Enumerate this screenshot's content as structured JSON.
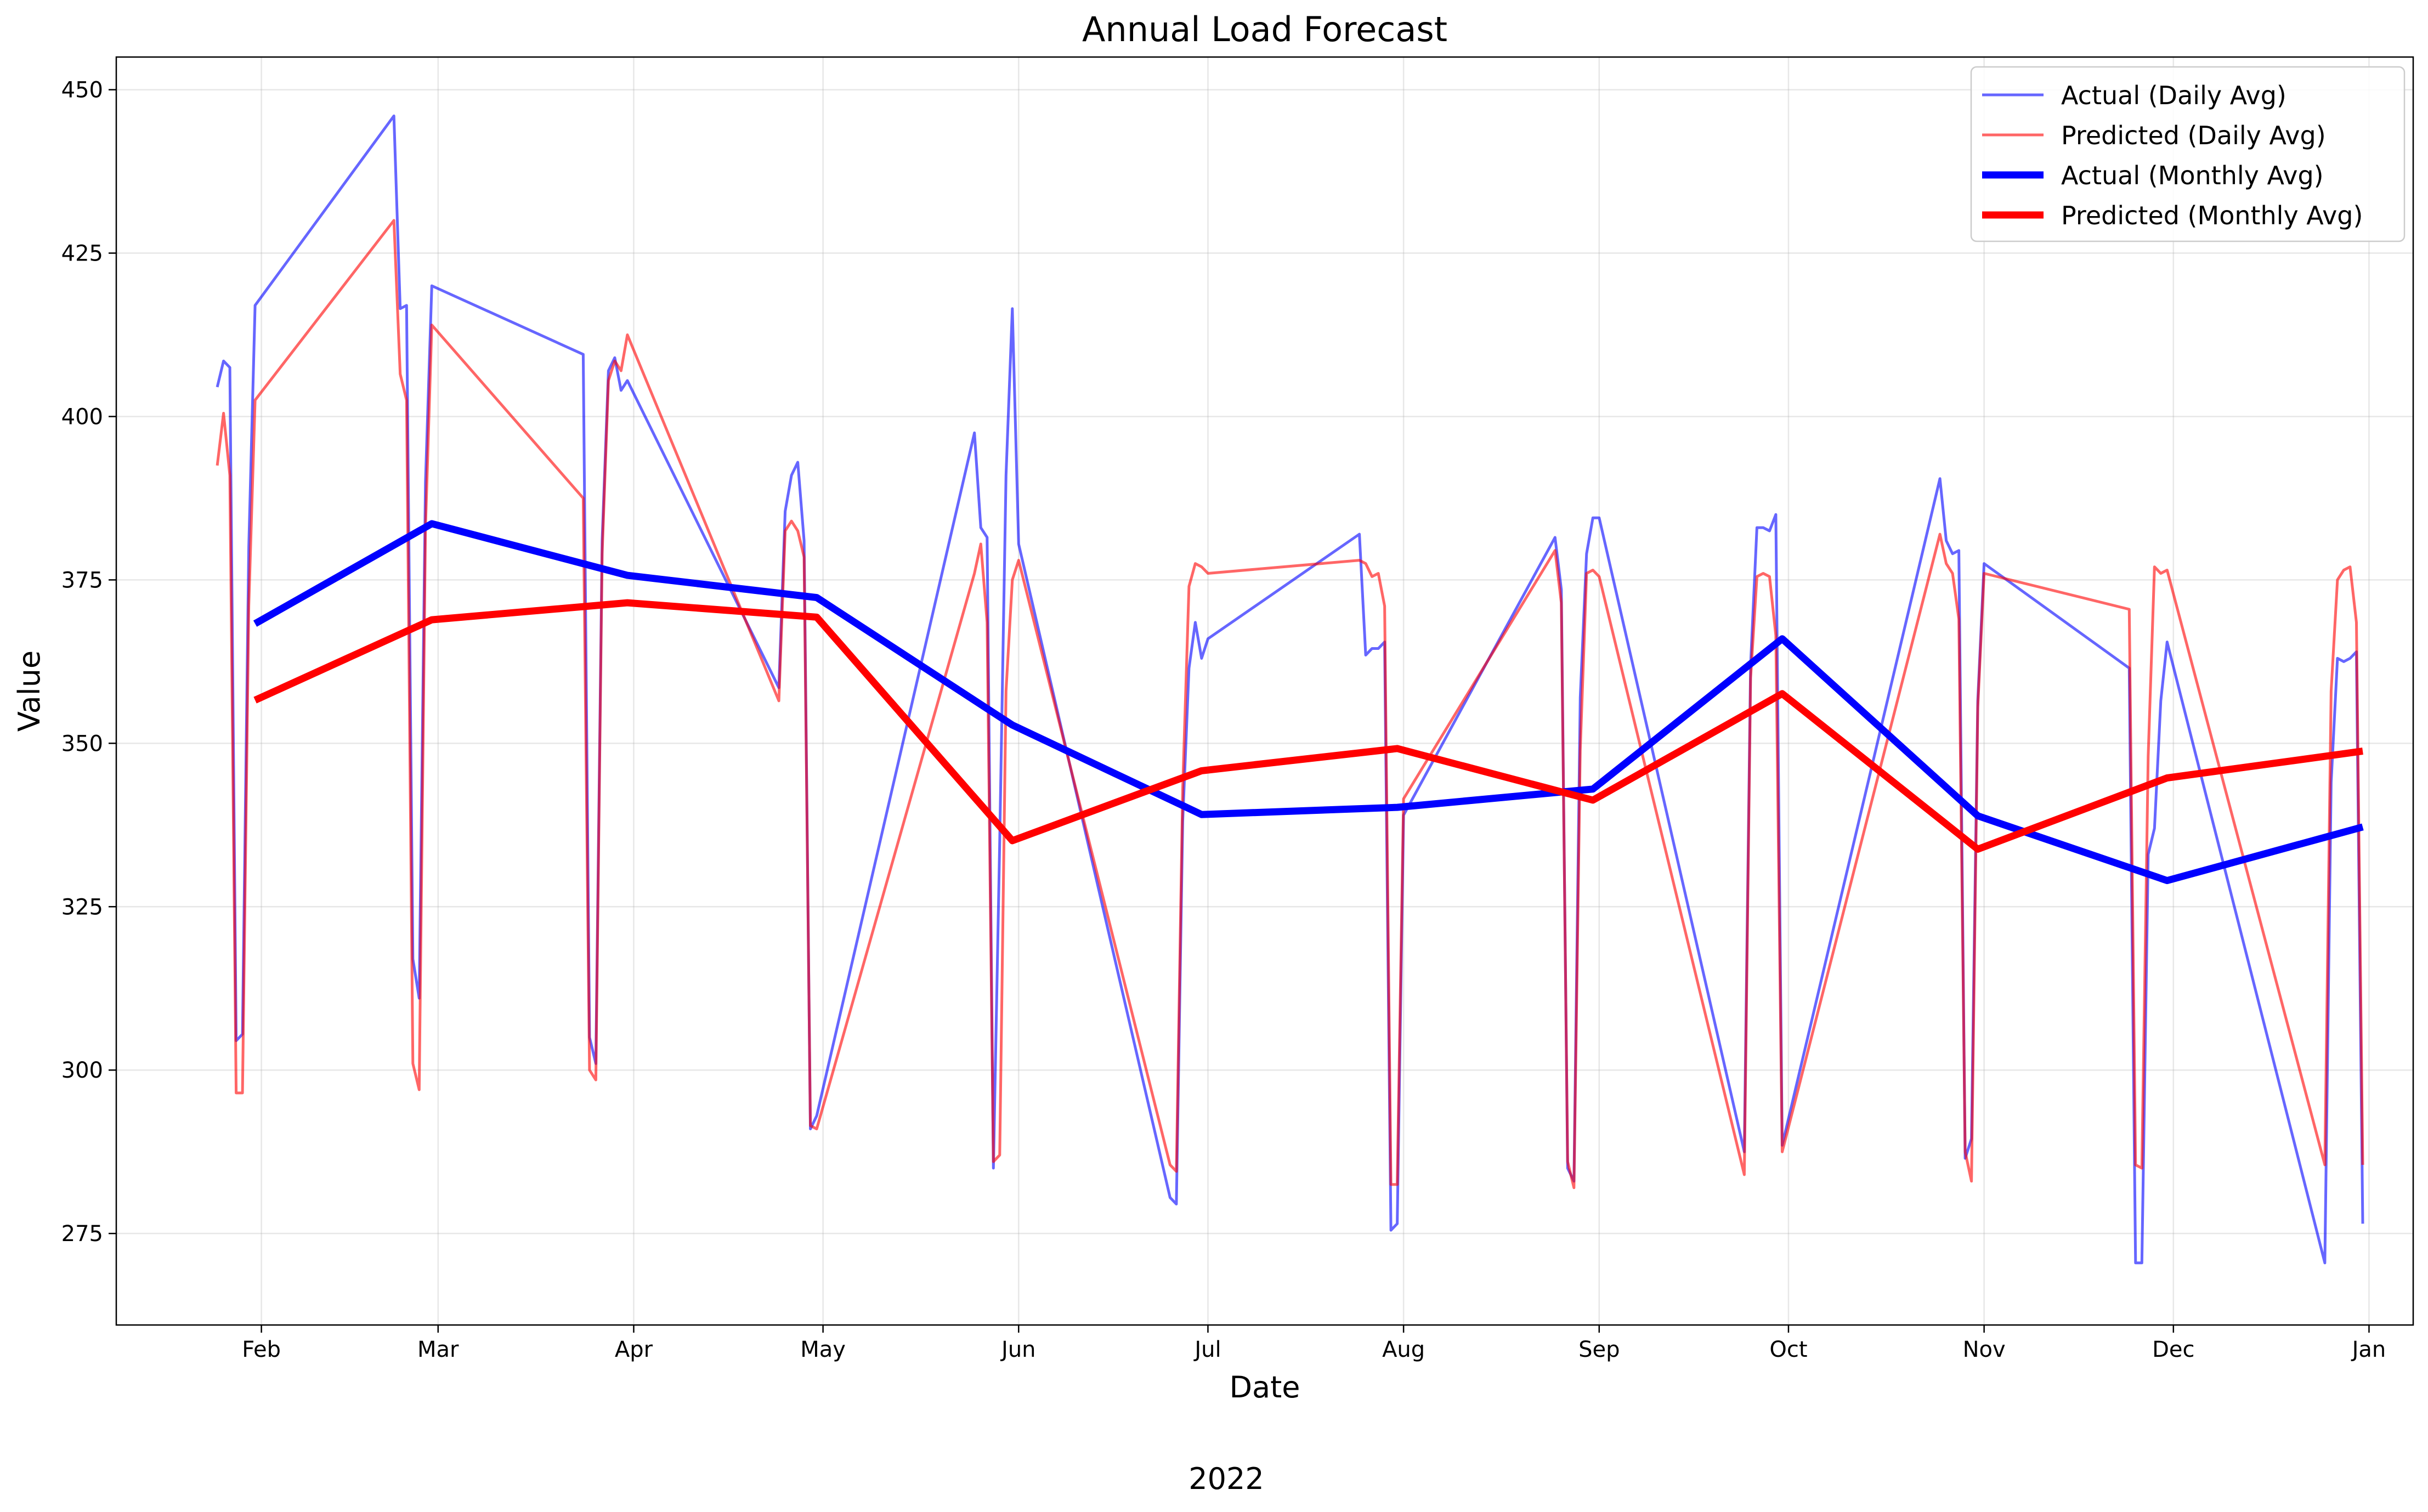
{
  "chart_data": {
    "type": "line",
    "title": "Annual Load Forecast",
    "xlabel": "Date",
    "ylabel": "Value",
    "year_label": "2022",
    "xlim": [
      "2022-01-09",
      "2023-01-08"
    ],
    "ylim": [
      261,
      455
    ],
    "grid": true,
    "legend_position": "top-right",
    "x_ticks": [
      {
        "date": "2022-02-01",
        "label": "Feb"
      },
      {
        "date": "2022-03-01",
        "label": "Mar"
      },
      {
        "date": "2022-04-01",
        "label": "Apr"
      },
      {
        "date": "2022-05-01",
        "label": "May"
      },
      {
        "date": "2022-06-01",
        "label": "Jun"
      },
      {
        "date": "2022-07-01",
        "label": "Jul"
      },
      {
        "date": "2022-08-01",
        "label": "Aug"
      },
      {
        "date": "2022-09-01",
        "label": "Sep"
      },
      {
        "date": "2022-10-01",
        "label": "Oct"
      },
      {
        "date": "2022-11-01",
        "label": "Nov"
      },
      {
        "date": "2022-12-01",
        "label": "Dec"
      },
      {
        "date": "2023-01-01",
        "label": "Jan"
      }
    ],
    "y_ticks": [
      275,
      300,
      325,
      350,
      375,
      400,
      425,
      450
    ],
    "series": [
      {
        "name": "Actual (Daily Avg)",
        "color": "#0000ff",
        "opacity": 0.6,
        "width": 5,
        "points": [
          [
            "2022-01-25",
            404.5
          ],
          [
            "2022-01-26",
            408.5
          ],
          [
            "2022-01-27",
            407.5
          ],
          [
            "2022-01-28",
            304.5
          ],
          [
            "2022-01-29",
            305.5
          ],
          [
            "2022-01-30",
            380
          ],
          [
            "2022-01-31",
            417
          ],
          [
            "2022-02-22",
            446
          ],
          [
            "2022-02-23",
            416.5
          ],
          [
            "2022-02-24",
            417
          ],
          [
            "2022-02-25",
            317
          ],
          [
            "2022-02-26",
            311
          ],
          [
            "2022-02-27",
            390
          ],
          [
            "2022-02-28",
            420
          ],
          [
            "2022-03-24",
            409.5
          ],
          [
            "2022-03-25",
            305
          ],
          [
            "2022-03-26",
            301
          ],
          [
            "2022-03-27",
            381
          ],
          [
            "2022-03-28",
            407
          ],
          [
            "2022-03-29",
            409
          ],
          [
            "2022-03-30",
            404
          ],
          [
            "2022-03-31",
            405.5
          ],
          [
            "2022-04-24",
            358.5
          ],
          [
            "2022-04-25",
            385.5
          ],
          [
            "2022-04-26",
            391
          ],
          [
            "2022-04-27",
            393
          ],
          [
            "2022-04-28",
            381
          ],
          [
            "2022-04-29",
            291
          ],
          [
            "2022-04-30",
            293
          ],
          [
            "2022-05-25",
            397.5
          ],
          [
            "2022-05-26",
            383
          ],
          [
            "2022-05-27",
            381.5
          ],
          [
            "2022-05-28",
            285
          ],
          [
            "2022-05-29",
            335
          ],
          [
            "2022-05-30",
            391
          ],
          [
            "2022-05-31",
            416.5
          ],
          [
            "2022-06-01",
            380.5
          ],
          [
            "2022-06-25",
            280.5
          ],
          [
            "2022-06-26",
            279.5
          ],
          [
            "2022-06-27",
            338
          ],
          [
            "2022-06-28",
            361.5
          ],
          [
            "2022-06-29",
            368.5
          ],
          [
            "2022-06-30",
            363
          ],
          [
            "2022-07-01",
            366
          ],
          [
            "2022-07-25",
            382
          ],
          [
            "2022-07-26",
            363.5
          ],
          [
            "2022-07-27",
            364.5
          ],
          [
            "2022-07-28",
            364.5
          ],
          [
            "2022-07-29",
            365.5
          ],
          [
            "2022-07-30",
            275.5
          ],
          [
            "2022-07-31",
            276.5
          ],
          [
            "2022-08-01",
            339
          ],
          [
            "2022-08-25",
            381.5
          ],
          [
            "2022-08-26",
            373.5
          ],
          [
            "2022-08-27",
            285
          ],
          [
            "2022-08-28",
            283
          ],
          [
            "2022-08-29",
            357
          ],
          [
            "2022-08-30",
            379
          ],
          [
            "2022-08-31",
            384.5
          ],
          [
            "2022-09-01",
            384.5
          ],
          [
            "2022-09-24",
            287.5
          ],
          [
            "2022-09-25",
            362
          ],
          [
            "2022-09-26",
            383
          ],
          [
            "2022-09-27",
            383
          ],
          [
            "2022-09-28",
            382.5
          ],
          [
            "2022-09-29",
            385
          ],
          [
            "2022-09-30",
            288.5
          ],
          [
            "2022-10-25",
            390.5
          ],
          [
            "2022-10-26",
            381
          ],
          [
            "2022-10-27",
            379
          ],
          [
            "2022-10-28",
            379.5
          ],
          [
            "2022-10-29",
            286.5
          ],
          [
            "2022-10-30",
            289.5
          ],
          [
            "2022-10-31",
            356.5
          ],
          [
            "2022-11-01",
            377.5
          ],
          [
            "2022-11-24",
            361.5
          ],
          [
            "2022-11-25",
            270.5
          ],
          [
            "2022-11-26",
            270.5
          ],
          [
            "2022-11-27",
            333
          ],
          [
            "2022-11-28",
            337
          ],
          [
            "2022-11-29",
            356.5
          ],
          [
            "2022-11-30",
            365.5
          ],
          [
            "2022-12-25",
            270.5
          ],
          [
            "2022-12-26",
            344
          ],
          [
            "2022-12-27",
            363
          ],
          [
            "2022-12-28",
            362.5
          ],
          [
            "2022-12-29",
            363
          ],
          [
            "2022-12-30",
            364
          ],
          [
            "2022-12-31",
            276.5
          ]
        ]
      },
      {
        "name": "Predicted (Daily Avg)",
        "color": "#ff0000",
        "opacity": 0.6,
        "width": 5,
        "points": [
          [
            "2022-01-25",
            392.5
          ],
          [
            "2022-01-26",
            400.5
          ],
          [
            "2022-01-27",
            391
          ],
          [
            "2022-01-28",
            296.5
          ],
          [
            "2022-01-29",
            296.5
          ],
          [
            "2022-01-30",
            371
          ],
          [
            "2022-01-31",
            402.5
          ],
          [
            "2022-02-22",
            430
          ],
          [
            "2022-02-23",
            406.5
          ],
          [
            "2022-02-24",
            402.5
          ],
          [
            "2022-02-25",
            301
          ],
          [
            "2022-02-26",
            297
          ],
          [
            "2022-02-27",
            383
          ],
          [
            "2022-02-28",
            414
          ],
          [
            "2022-03-24",
            387.5
          ],
          [
            "2022-03-25",
            300
          ],
          [
            "2022-03-26",
            298.5
          ],
          [
            "2022-03-27",
            379
          ],
          [
            "2022-03-28",
            405.5
          ],
          [
            "2022-03-29",
            408.5
          ],
          [
            "2022-03-30",
            407
          ],
          [
            "2022-03-31",
            412.5
          ],
          [
            "2022-04-24",
            356.5
          ],
          [
            "2022-04-25",
            382.5
          ],
          [
            "2022-04-26",
            384
          ],
          [
            "2022-04-27",
            382.5
          ],
          [
            "2022-04-28",
            378.5
          ],
          [
            "2022-04-29",
            291.5
          ],
          [
            "2022-04-30",
            291
          ],
          [
            "2022-05-25",
            376
          ],
          [
            "2022-05-26",
            380.5
          ],
          [
            "2022-05-27",
            368.5
          ],
          [
            "2022-05-28",
            286
          ],
          [
            "2022-05-29",
            287
          ],
          [
            "2022-05-30",
            358
          ],
          [
            "2022-05-31",
            375
          ],
          [
            "2022-06-01",
            378
          ],
          [
            "2022-06-25",
            285.5
          ],
          [
            "2022-06-26",
            284.5
          ],
          [
            "2022-06-27",
            343
          ],
          [
            "2022-06-28",
            374
          ],
          [
            "2022-06-29",
            377.5
          ],
          [
            "2022-06-30",
            377
          ],
          [
            "2022-07-01",
            376
          ],
          [
            "2022-07-25",
            378
          ],
          [
            "2022-07-26",
            377.5
          ],
          [
            "2022-07-27",
            375.5
          ],
          [
            "2022-07-28",
            376
          ],
          [
            "2022-07-29",
            371
          ],
          [
            "2022-07-30",
            282.5
          ],
          [
            "2022-07-31",
            282.5
          ],
          [
            "2022-08-01",
            341.5
          ],
          [
            "2022-08-25",
            379.5
          ],
          [
            "2022-08-26",
            371.5
          ],
          [
            "2022-08-27",
            286
          ],
          [
            "2022-08-28",
            282
          ],
          [
            "2022-08-29",
            349
          ],
          [
            "2022-08-30",
            376
          ],
          [
            "2022-08-31",
            376.5
          ],
          [
            "2022-09-01",
            375.5
          ],
          [
            "2022-09-24",
            284
          ],
          [
            "2022-09-25",
            360
          ],
          [
            "2022-09-26",
            375.5
          ],
          [
            "2022-09-27",
            376
          ],
          [
            "2022-09-28",
            375.5
          ],
          [
            "2022-09-29",
            366.5
          ],
          [
            "2022-09-30",
            287.5
          ],
          [
            "2022-10-25",
            382
          ],
          [
            "2022-10-26",
            377.5
          ],
          [
            "2022-10-27",
            376
          ],
          [
            "2022-10-28",
            369
          ],
          [
            "2022-10-29",
            287.5
          ],
          [
            "2022-10-30",
            283
          ],
          [
            "2022-10-31",
            355.5
          ],
          [
            "2022-11-01",
            376
          ],
          [
            "2022-11-24",
            370.5
          ],
          [
            "2022-11-25",
            285.5
          ],
          [
            "2022-11-26",
            285
          ],
          [
            "2022-11-27",
            348
          ],
          [
            "2022-11-28",
            377
          ],
          [
            "2022-11-29",
            376
          ],
          [
            "2022-11-30",
            376.5
          ],
          [
            "2022-12-25",
            285.5
          ],
          [
            "2022-12-26",
            358
          ],
          [
            "2022-12-27",
            375
          ],
          [
            "2022-12-28",
            376.5
          ],
          [
            "2022-12-29",
            377
          ],
          [
            "2022-12-30",
            368.5
          ],
          [
            "2022-12-31",
            285.5
          ]
        ]
      },
      {
        "name": "Actual (Monthly Avg)",
        "color": "#0000ff",
        "opacity": 1,
        "width": 13,
        "points": [
          [
            "2022-01-31",
            368.3
          ],
          [
            "2022-02-28",
            383.6
          ],
          [
            "2022-03-31",
            375.7
          ],
          [
            "2022-04-30",
            372.3
          ],
          [
            "2022-05-31",
            352.8
          ],
          [
            "2022-06-30",
            339.1
          ],
          [
            "2022-07-31",
            340.2
          ],
          [
            "2022-08-31",
            343.0
          ],
          [
            "2022-09-30",
            366.0
          ],
          [
            "2022-10-31",
            338.9
          ],
          [
            "2022-11-30",
            329.0
          ],
          [
            "2022-12-31",
            337.2
          ]
        ]
      },
      {
        "name": "Predicted (Monthly Avg)",
        "color": "#ff0000",
        "opacity": 1,
        "width": 13,
        "points": [
          [
            "2022-01-31",
            356.6
          ],
          [
            "2022-02-28",
            368.9
          ],
          [
            "2022-03-31",
            371.5
          ],
          [
            "2022-04-30",
            369.3
          ],
          [
            "2022-05-31",
            335.1
          ],
          [
            "2022-06-30",
            345.8
          ],
          [
            "2022-07-31",
            349.2
          ],
          [
            "2022-08-31",
            341.3
          ],
          [
            "2022-09-30",
            357.6
          ],
          [
            "2022-10-31",
            333.8
          ],
          [
            "2022-11-30",
            344.7
          ],
          [
            "2022-12-31",
            348.8
          ]
        ]
      }
    ]
  }
}
